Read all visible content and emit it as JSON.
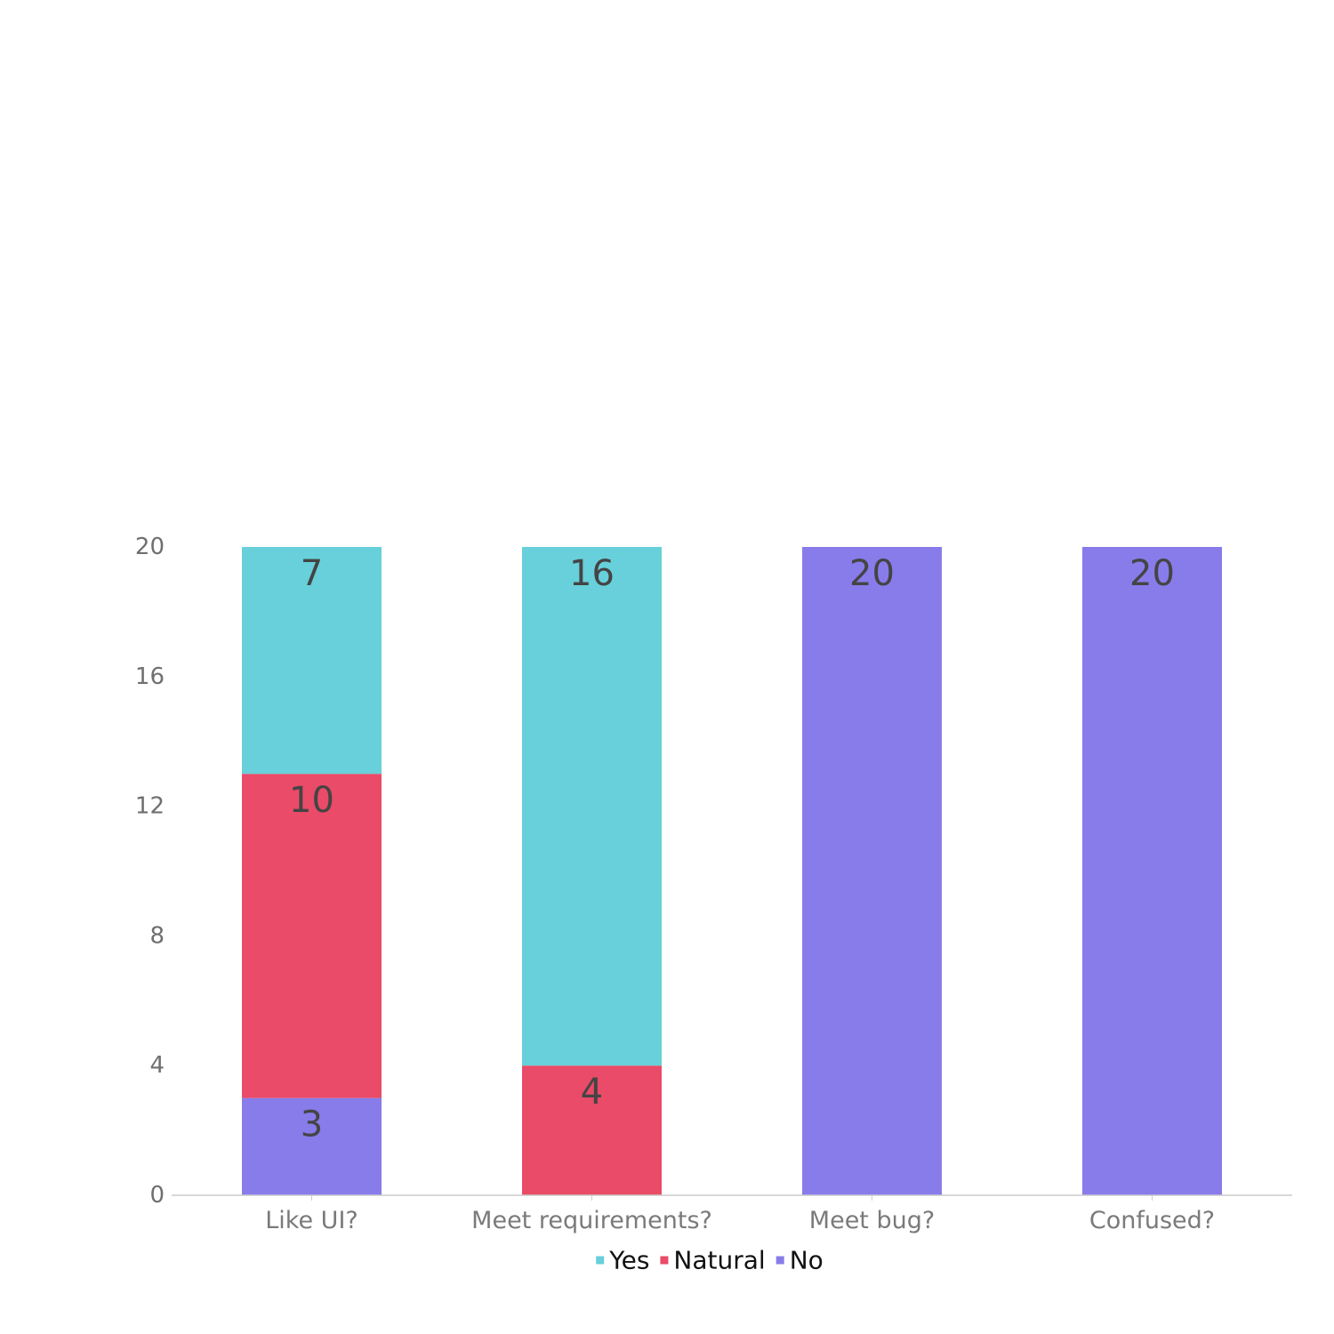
{
  "chart_data": {
    "type": "bar",
    "stacked": true,
    "categories": [
      "Like UI?",
      "Meet requirements?",
      "Meet bug?",
      "Confused?"
    ],
    "series": [
      {
        "name": "No",
        "values": [
          3,
          0,
          20,
          20
        ],
        "color": "#887ceb"
      },
      {
        "name": "Natural",
        "values": [
          10,
          4,
          0,
          0
        ],
        "color": "#e94b68"
      },
      {
        "name": "Yes",
        "values": [
          7,
          16,
          0,
          0
        ],
        "color": "#67d0da"
      }
    ],
    "legend_order": [
      "Yes",
      "Natural",
      "No"
    ],
    "yticks": [
      "0",
      "4",
      "8",
      "12",
      "16",
      "20"
    ],
    "ylim": [
      0,
      20
    ],
    "grid": false,
    "legend_position": "bottom",
    "title": "",
    "xlabel": "",
    "ylabel": ""
  }
}
